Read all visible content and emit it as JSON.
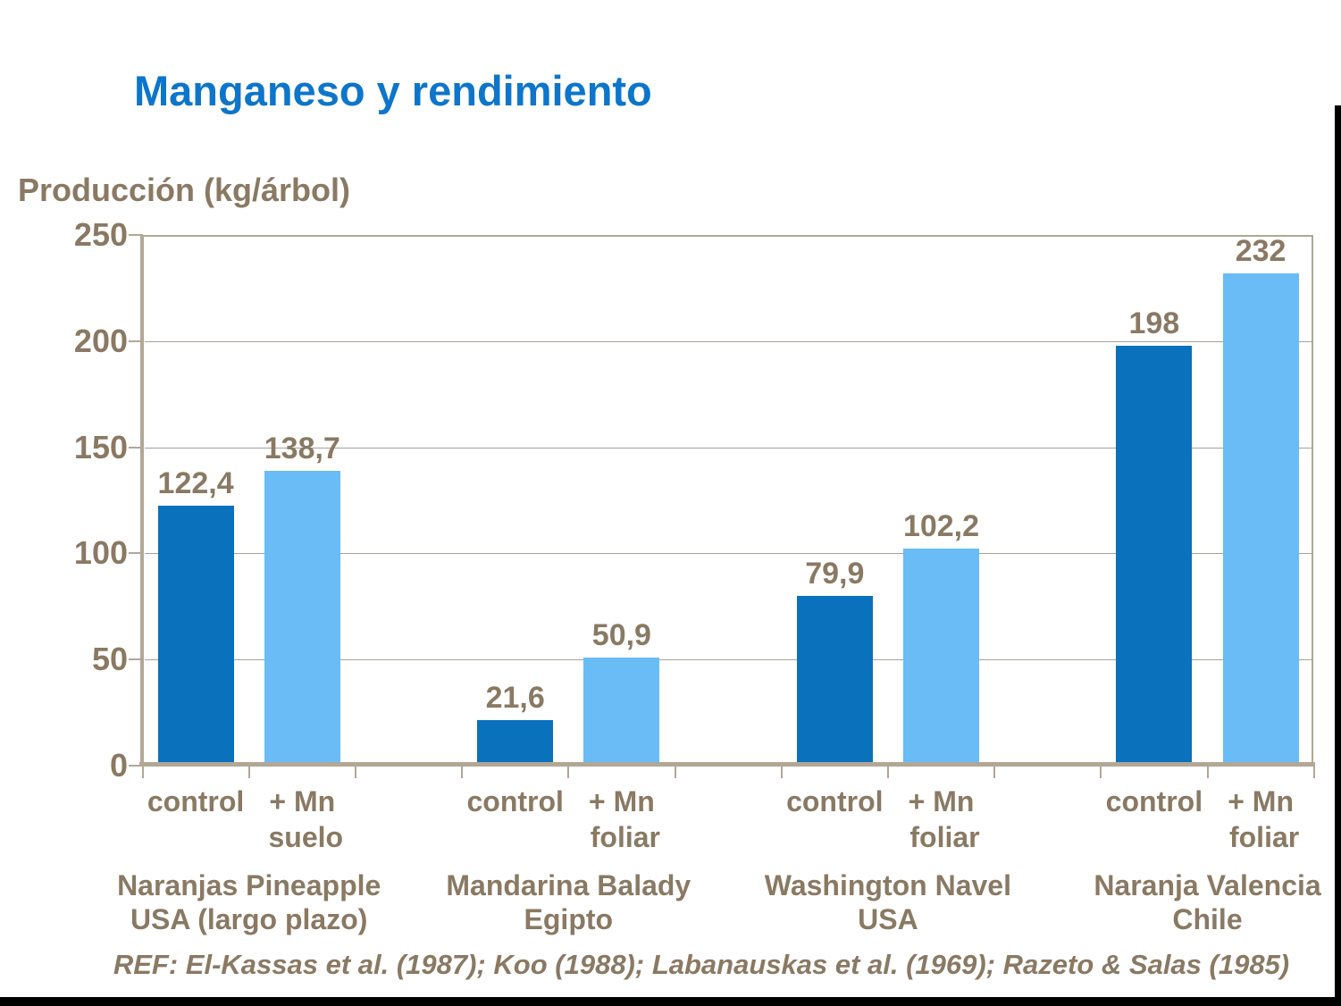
{
  "header": {
    "title": "Manganeso y rendimiento"
  },
  "chart_data": {
    "type": "bar",
    "title": "Manganeso y rendimiento",
    "ylabel": "Producción (kg/árbol)",
    "ylim": [
      0,
      250
    ],
    "yticks": [
      0,
      50,
      100,
      150,
      200,
      250
    ],
    "grid": true,
    "legend": "none",
    "series": [
      {
        "name": "control",
        "color": "#0A71BD"
      },
      {
        "name": "+ Mn",
        "color": "#69BCF5"
      }
    ],
    "groups": [
      {
        "title_lines": [
          "Naranjas Pineapple",
          "USA (largo plazo)"
        ],
        "bars": [
          {
            "series": "control",
            "label_lines": [
              "control"
            ],
            "value": 122.4,
            "value_label": "122,4"
          },
          {
            "series": "+ Mn",
            "label_lines": [
              "+ Mn",
              "suelo"
            ],
            "value": 138.7,
            "value_label": "138,7"
          }
        ]
      },
      {
        "title_lines": [
          "Mandarina Balady",
          "Egipto"
        ],
        "bars": [
          {
            "series": "control",
            "label_lines": [
              "control"
            ],
            "value": 21.6,
            "value_label": "21,6"
          },
          {
            "series": "+ Mn",
            "label_lines": [
              "+ Mn",
              "foliar"
            ],
            "value": 50.9,
            "value_label": "50,9"
          }
        ]
      },
      {
        "title_lines": [
          "Washington Navel",
          "USA"
        ],
        "bars": [
          {
            "series": "control",
            "label_lines": [
              "control"
            ],
            "value": 79.9,
            "value_label": "79,9"
          },
          {
            "series": "+ Mn",
            "label_lines": [
              "+ Mn",
              "foliar"
            ],
            "value": 102.2,
            "value_label": "102,2"
          }
        ]
      },
      {
        "title_lines": [
          "Naranja Valencia",
          "Chile"
        ],
        "bars": [
          {
            "series": "control",
            "label_lines": [
              "control"
            ],
            "value": 198,
            "value_label": "198"
          },
          {
            "series": "+ Mn",
            "label_lines": [
              "+ Mn",
              "foliar"
            ],
            "value": 232,
            "value_label": "232"
          }
        ]
      }
    ],
    "reference": "REF: El-Kassas et al. (1987); Koo (1988); Labanauskas et al. (1969); Razeto & Salas (1985)"
  },
  "colors": {
    "title_blue": "#0D76CB",
    "bar_control": "#0A71BD",
    "bar_treated": "#69BCF5",
    "text_brown": "#8A7963",
    "axis_tan": "#B2A796",
    "gridline_gray": "#A8A096",
    "edge_black": "#000000",
    "background": "#FFFFFF"
  }
}
